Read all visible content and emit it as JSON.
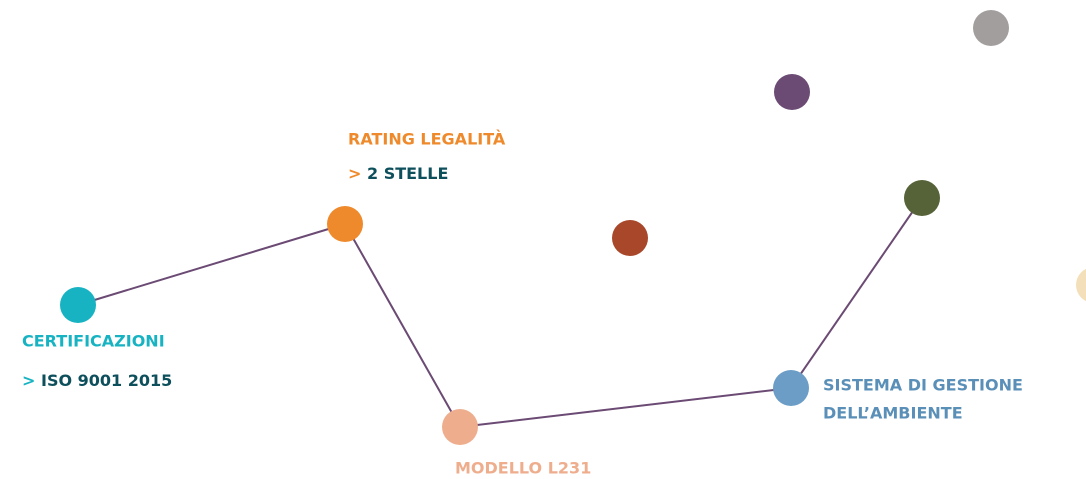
{
  "nodes": [
    {
      "label": "CERTIFICAZIONI",
      "detail": {
        "marker": ">",
        "text": "ISO 9001 2015"
      }
    },
    {
      "label": "RATING LEGALITÀ",
      "detail": {
        "marker": ">",
        "text": "2 STELLE"
      }
    },
    {
      "label": "MODELLO L231"
    },
    {
      "label": [
        "SISTEMA DI GESTIONE",
        "DELL’AMBIENTE"
      ]
    }
  ]
}
